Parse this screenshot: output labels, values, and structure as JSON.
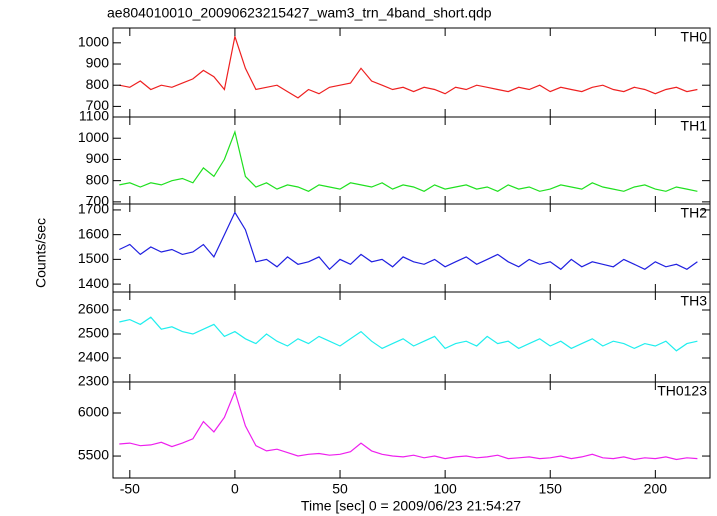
{
  "chart_data": {
    "type": "line",
    "title": "ae804010010_20090623215427_wam3_trn_4band_short.qdp",
    "xlabel": "Time [sec] 0 = 2009/06/23 21:54:27",
    "ylabel": "Counts/sec",
    "x": [
      -55,
      -50,
      -45,
      -40,
      -35,
      -30,
      -25,
      -20,
      -15,
      -10,
      -5,
      0,
      5,
      10,
      15,
      20,
      25,
      30,
      35,
      40,
      45,
      50,
      55,
      60,
      65,
      70,
      75,
      80,
      85,
      90,
      95,
      100,
      105,
      110,
      115,
      120,
      125,
      130,
      135,
      140,
      145,
      150,
      155,
      160,
      165,
      170,
      175,
      180,
      185,
      190,
      195,
      200,
      205,
      210,
      215,
      220
    ],
    "xlim": [
      -58,
      226
    ],
    "xticks": [
      -50,
      0,
      50,
      100,
      150,
      200
    ],
    "panels": [
      {
        "name": "TH0",
        "color": "#ee2020",
        "ylim": [
          650,
          1070
        ],
        "yticks": [
          700,
          800,
          900,
          1000
        ],
        "values": [
          800,
          790,
          820,
          780,
          800,
          790,
          810,
          830,
          870,
          840,
          780,
          1030,
          880,
          780,
          790,
          800,
          770,
          740,
          780,
          760,
          790,
          800,
          810,
          880,
          820,
          800,
          780,
          790,
          770,
          790,
          780,
          760,
          790,
          780,
          800,
          790,
          780,
          770,
          790,
          780,
          800,
          770,
          790,
          780,
          770,
          790,
          800,
          780,
          770,
          790,
          780,
          760,
          780,
          790,
          770,
          780
        ]
      },
      {
        "name": "TH1",
        "color": "#20e020",
        "ylim": [
          690,
          1100
        ],
        "yticks": [
          700,
          800,
          900,
          1000,
          1100
        ],
        "values": [
          780,
          790,
          770,
          790,
          780,
          800,
          810,
          790,
          860,
          820,
          900,
          1030,
          820,
          770,
          790,
          760,
          780,
          770,
          750,
          780,
          770,
          760,
          790,
          780,
          770,
          790,
          760,
          780,
          770,
          750,
          780,
          760,
          770,
          780,
          760,
          770,
          750,
          780,
          760,
          770,
          750,
          760,
          780,
          770,
          760,
          790,
          770,
          760,
          750,
          770,
          780,
          760,
          750,
          770,
          760,
          750
        ]
      },
      {
        "name": "TH2",
        "color": "#2020e0",
        "ylim": [
          1368,
          1724
        ],
        "yticks": [
          1400,
          1500,
          1600,
          1700
        ],
        "values": [
          1540,
          1560,
          1520,
          1550,
          1530,
          1540,
          1520,
          1530,
          1560,
          1510,
          1600,
          1690,
          1620,
          1490,
          1500,
          1470,
          1510,
          1480,
          1490,
          1510,
          1460,
          1500,
          1480,
          1520,
          1490,
          1500,
          1470,
          1510,
          1490,
          1480,
          1500,
          1470,
          1490,
          1510,
          1480,
          1500,
          1520,
          1490,
          1470,
          1500,
          1480,
          1490,
          1460,
          1500,
          1470,
          1490,
          1480,
          1470,
          1500,
          1480,
          1460,
          1490,
          1470,
          1480,
          1460,
          1490
        ]
      },
      {
        "name": "TH3",
        "color": "#20eeee",
        "ylim": [
          2300,
          2675
        ],
        "yticks": [
          2300,
          2400,
          2500,
          2600
        ],
        "values": [
          2550,
          2560,
          2540,
          2570,
          2520,
          2530,
          2510,
          2500,
          2520,
          2540,
          2490,
          2510,
          2480,
          2460,
          2500,
          2470,
          2450,
          2480,
          2460,
          2490,
          2470,
          2450,
          2480,
          2510,
          2470,
          2440,
          2460,
          2480,
          2450,
          2470,
          2490,
          2440,
          2460,
          2470,
          2450,
          2490,
          2460,
          2470,
          2440,
          2460,
          2480,
          2450,
          2470,
          2440,
          2460,
          2480,
          2450,
          2470,
          2460,
          2440,
          2460,
          2450,
          2470,
          2430,
          2460,
          2470
        ]
      },
      {
        "name": "TH0123",
        "color": "#ee20ee",
        "ylim": [
          5245,
          6360
        ],
        "yticks": [
          5500,
          6000
        ],
        "values": [
          5640,
          5650,
          5620,
          5630,
          5660,
          5610,
          5650,
          5700,
          5900,
          5780,
          5950,
          6250,
          5850,
          5620,
          5560,
          5580,
          5540,
          5500,
          5520,
          5530,
          5510,
          5520,
          5550,
          5650,
          5560,
          5520,
          5500,
          5490,
          5510,
          5480,
          5500,
          5470,
          5490,
          5500,
          5480,
          5490,
          5510,
          5470,
          5480,
          5490,
          5470,
          5480,
          5500,
          5470,
          5490,
          5520,
          5480,
          5470,
          5490,
          5460,
          5480,
          5470,
          5490,
          5460,
          5480,
          5470
        ]
      }
    ]
  }
}
